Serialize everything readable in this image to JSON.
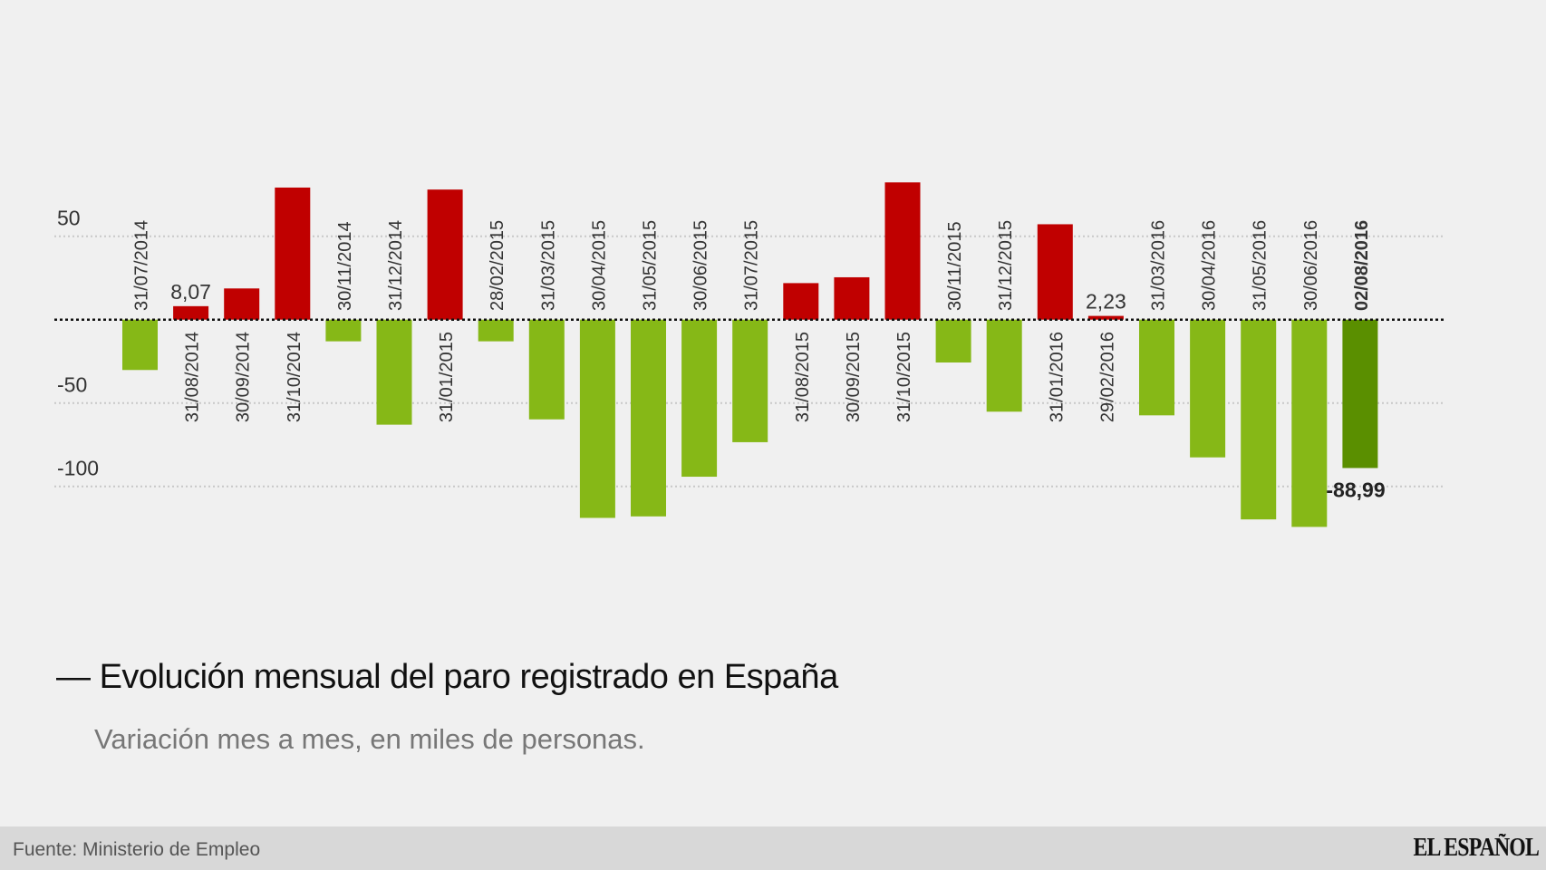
{
  "chart_data": {
    "type": "bar",
    "title": "Evolución mensual del paro registrado en España",
    "subtitle": "Variación mes a mes, en miles de personas.",
    "categories": [
      "31/07/2014",
      "31/08/2014",
      "30/09/2014",
      "31/10/2014",
      "30/11/2014",
      "31/12/2014",
      "31/01/2015",
      "28/02/2015",
      "31/03/2015",
      "30/04/2015",
      "31/05/2015",
      "30/06/2015",
      "31/07/2015",
      "31/08/2015",
      "30/09/2015",
      "31/10/2015",
      "30/11/2015",
      "31/12/2015",
      "31/01/2016",
      "29/02/2016",
      "31/03/2016",
      "30/04/2016",
      "31/05/2016",
      "30/06/2016",
      "02/08/2016"
    ],
    "values": [
      -30.2,
      8.07,
      18.7,
      79.2,
      -13.0,
      -63.0,
      78.0,
      -13.0,
      -59.8,
      -118.9,
      -118.0,
      -94.2,
      -73.5,
      21.9,
      25.4,
      82.3,
      -25.7,
      -55.2,
      57.2,
      2.23,
      -57.4,
      -82.6,
      -119.8,
      -124.3,
      -88.99
    ],
    "data_labels": [
      {
        "index": 1,
        "text": "8,07"
      },
      {
        "index": 19,
        "text": "2,23"
      },
      {
        "index": 24,
        "text": "-88,99"
      }
    ],
    "highlight_index": 24,
    "yticks": [
      50,
      -50,
      -100
    ],
    "ytick_labels": [
      "50",
      "-50",
      "-100"
    ],
    "ylim": [
      -130,
      90
    ],
    "grid": true,
    "colors": {
      "positive": "#c00000",
      "negative": "#86b817",
      "highlight": "#5a8f00",
      "background": "#f0f0f0"
    }
  },
  "footer": {
    "source": "Fuente: Ministerio de Empleo",
    "logo": "EL ESPAÑOL"
  }
}
